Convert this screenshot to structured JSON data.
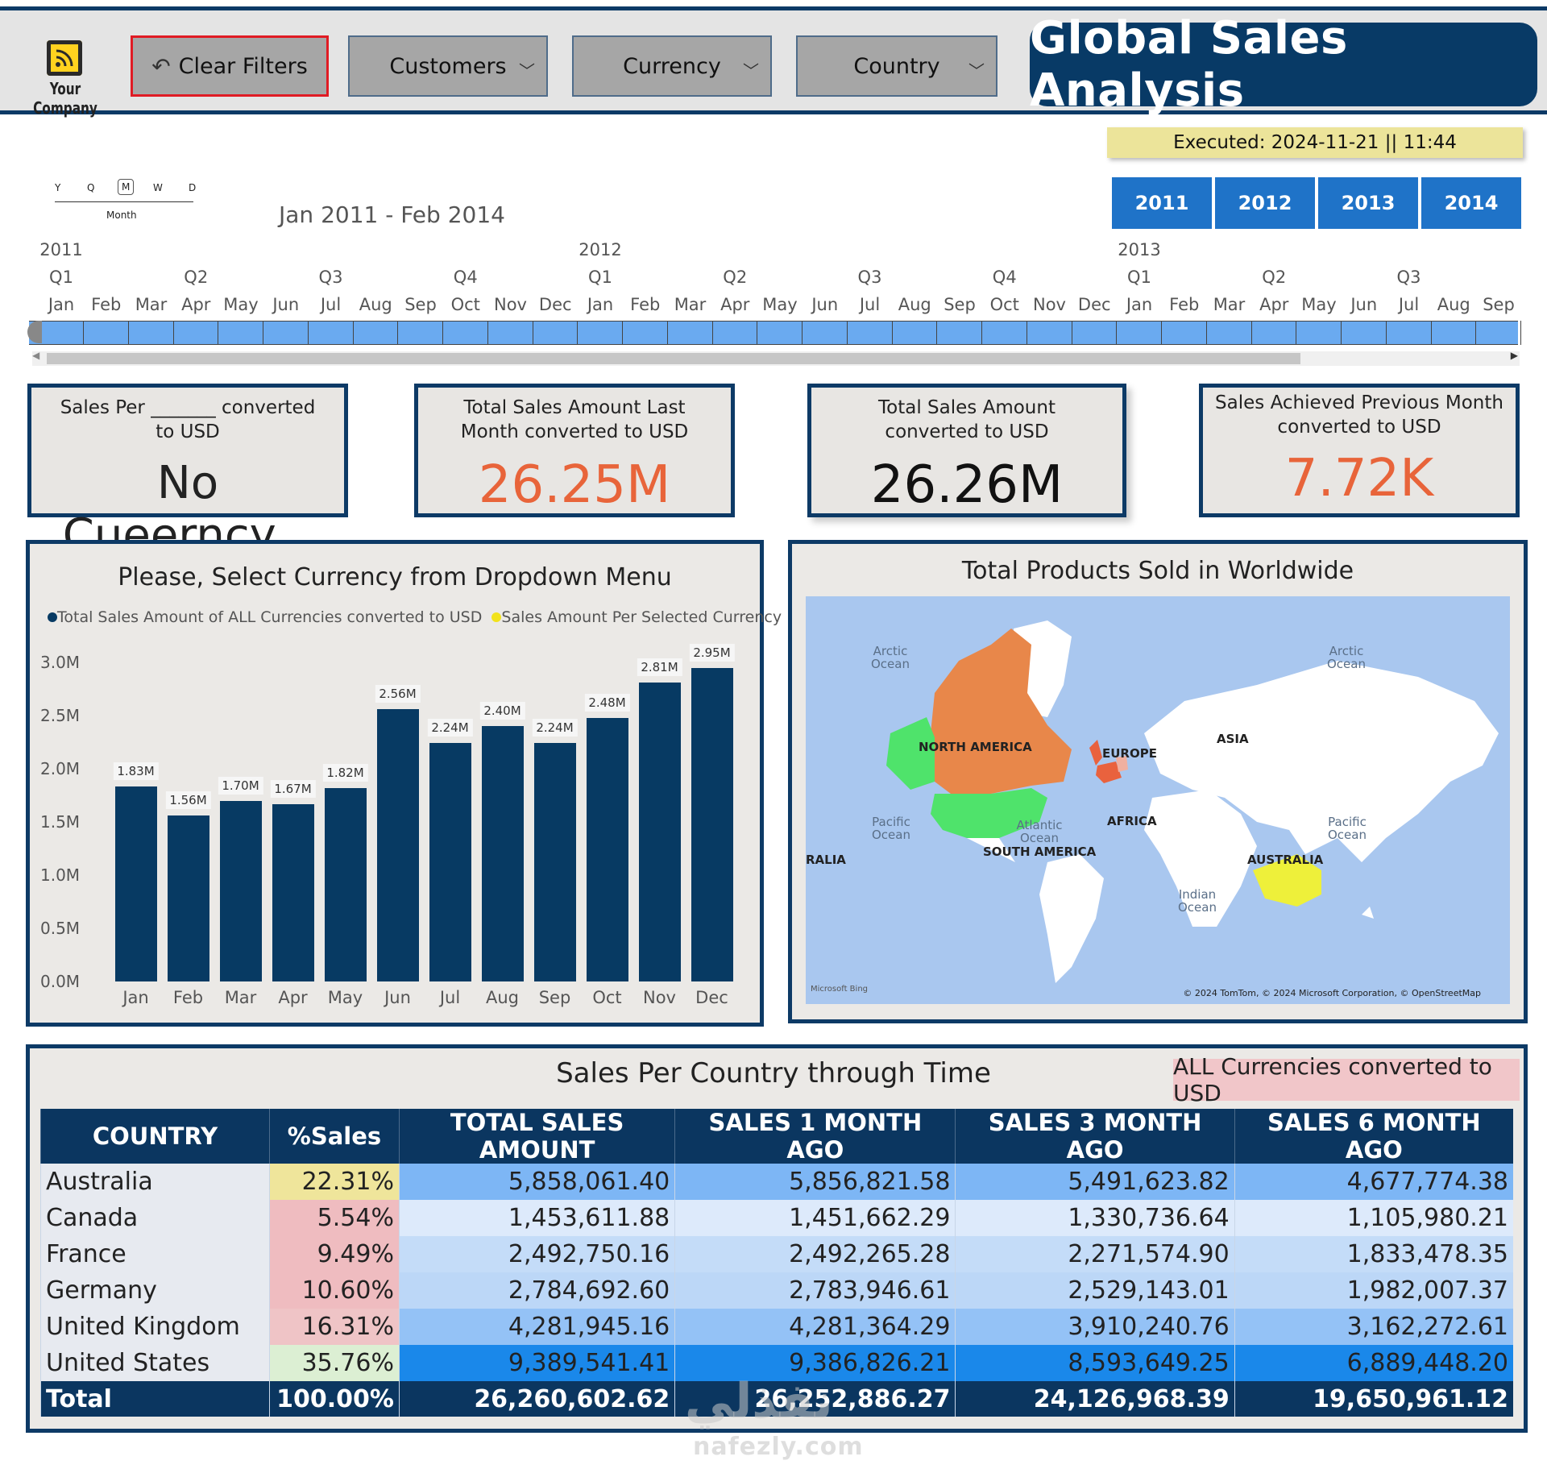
{
  "header": {
    "logo_text": "Your Company",
    "clear_filters": "Clear Filters",
    "slicers": [
      "Customers",
      "Currency",
      "Country"
    ],
    "title": "Global Sales Analysis",
    "executed": "Executed: 2024-11-21  ||  11:44",
    "years": [
      "2011",
      "2012",
      "2013",
      "2014"
    ]
  },
  "timeline": {
    "granularity": [
      "Y",
      "Q",
      "M",
      "W",
      "D"
    ],
    "granularity_selected": "Month",
    "range": "Jan 2011 - Feb 2014",
    "years": [
      "2011",
      "2012",
      "2013"
    ],
    "quarters": [
      "Q1",
      "Q2",
      "Q3",
      "Q4",
      "Q1",
      "Q2",
      "Q3",
      "Q4",
      "Q1",
      "Q2",
      "Q3"
    ],
    "months": [
      "Jan",
      "Feb",
      "Mar",
      "Apr",
      "May",
      "Jun",
      "Jul",
      "Aug",
      "Sep",
      "Oct",
      "Nov",
      "Dec",
      "Jan",
      "Feb",
      "Mar",
      "Apr",
      "May",
      "Jun",
      "Jul",
      "Aug",
      "Sep",
      "Oct",
      "Nov",
      "Dec",
      "Jan",
      "Feb",
      "Mar",
      "Apr",
      "May",
      "Jun",
      "Jul",
      "Aug",
      "Sep"
    ]
  },
  "kpis": [
    {
      "title": "Sales Per _______ converted to USD",
      "value": "No Cueerncy...",
      "color": "#111111"
    },
    {
      "title": "Total Sales Amount Last Month converted to USD",
      "value": "26.25M",
      "color": "#e8643a"
    },
    {
      "title": "Total Sales Amount converted to USD",
      "value": "26.26M",
      "color": "#111111"
    },
    {
      "title": "Sales Achieved Previous Month converted to USD",
      "value": "7.72K",
      "color": "#e8643a"
    }
  ],
  "bar_panel": {
    "title": "Please, Select Currency from Dropdown Menu",
    "legend": [
      {
        "label": "Total Sales Amount of ALL Currencies converted to USD",
        "color": "#073a63"
      },
      {
        "label": "Sales Amount Per Selected Currency",
        "color": "#f2e21b"
      }
    ]
  },
  "chart_data": {
    "type": "bar",
    "categories": [
      "Jan",
      "Feb",
      "Mar",
      "Apr",
      "May",
      "Jun",
      "Jul",
      "Aug",
      "Sep",
      "Oct",
      "Nov",
      "Dec"
    ],
    "series": [
      {
        "name": "Total Sales Amount of ALL Currencies converted to USD",
        "values": [
          1.83,
          1.56,
          1.7,
          1.67,
          1.82,
          2.56,
          2.24,
          2.4,
          2.24,
          2.48,
          2.81,
          2.95
        ]
      }
    ],
    "value_labels": [
      "1.83M",
      "1.56M",
      "1.70M",
      "1.67M",
      "1.82M",
      "2.56M",
      "2.24M",
      "2.40M",
      "2.24M",
      "2.48M",
      "2.81M",
      "2.95M"
    ],
    "yticks": [
      "0.0M",
      "0.5M",
      "1.0M",
      "1.5M",
      "2.0M",
      "2.5M",
      "3.0M"
    ],
    "ylim": [
      0,
      3.0
    ],
    "unit": "M"
  },
  "map_panel": {
    "title": "Total Products Sold in Worldwide",
    "labels": [
      "NORTH AMERICA",
      "EUROPE",
      "ASIA",
      "AFRICA",
      "SOUTH AMERICA",
      "AUSTRALIA",
      "RALIA"
    ],
    "oceans": [
      "Arctic Ocean",
      "Arctic Ocean",
      "Pacific Ocean",
      "Atlantic Ocean",
      "Pacific Ocean",
      "Indian Ocean"
    ],
    "attribution": "© 2024 TomTom, © 2024 Microsoft Corporation, © OpenStreetMap",
    "brand": "Microsoft Bing"
  },
  "table_panel": {
    "title": "Sales Per Country through Time",
    "badge": "ALL Currencies converted to USD",
    "columns": [
      "COUNTRY",
      "%Sales",
      "TOTAL SALES AMOUNT",
      "SALES 1 MONTH AGO",
      "SALES 3 MONTH AGO",
      "SALES 6 MONTH AGO"
    ],
    "rows": [
      {
        "country": "Australia",
        "pct": "22.31%",
        "total": "5,858,061.40",
        "m1": "5,856,821.58",
        "m3": "5,491,623.82",
        "m6": "4,677,774.38",
        "pct_color": "#efe59b",
        "bar_color": "#7db6f5"
      },
      {
        "country": "Canada",
        "pct": "5.54%",
        "total": "1,453,611.88",
        "m1": "1,451,662.29",
        "m3": "1,330,736.64",
        "m6": "1,105,980.21",
        "pct_color": "#efbcc0",
        "bar_color": "#ddeafb"
      },
      {
        "country": "France",
        "pct": "9.49%",
        "total": "2,492,750.16",
        "m1": "2,492,265.28",
        "m3": "2,271,574.90",
        "m6": "1,833,478.35",
        "pct_color": "#efbcc0",
        "bar_color": "#c4dcf8"
      },
      {
        "country": "Germany",
        "pct": "10.60%",
        "total": "2,784,692.60",
        "m1": "2,783,946.61",
        "m3": "2,529,143.01",
        "m6": "1,982,007.37",
        "pct_color": "#efbcc0",
        "bar_color": "#bcd7f7"
      },
      {
        "country": "United Kingdom",
        "pct": "16.31%",
        "total": "4,281,945.16",
        "m1": "4,281,364.29",
        "m3": "3,910,240.76",
        "m6": "3,162,272.61",
        "pct_color": "#efc4c6",
        "bar_color": "#94c2f6"
      },
      {
        "country": "United States",
        "pct": "35.76%",
        "total": "9,389,541.41",
        "m1": "9,386,826.21",
        "m3": "8,593,649.25",
        "m6": "6,889,448.20",
        "pct_color": "#dcefd3",
        "bar_color": "#1a88ea"
      }
    ],
    "total": {
      "country": "Total",
      "pct": "100.00%",
      "total": "26,260,602.62",
      "m1": "26,252,886.27",
      "m3": "24,126,968.39",
      "m6": "19,650,961.12"
    }
  },
  "watermark": {
    "arabic": "نفذلي",
    "site": "nafezly.com"
  }
}
